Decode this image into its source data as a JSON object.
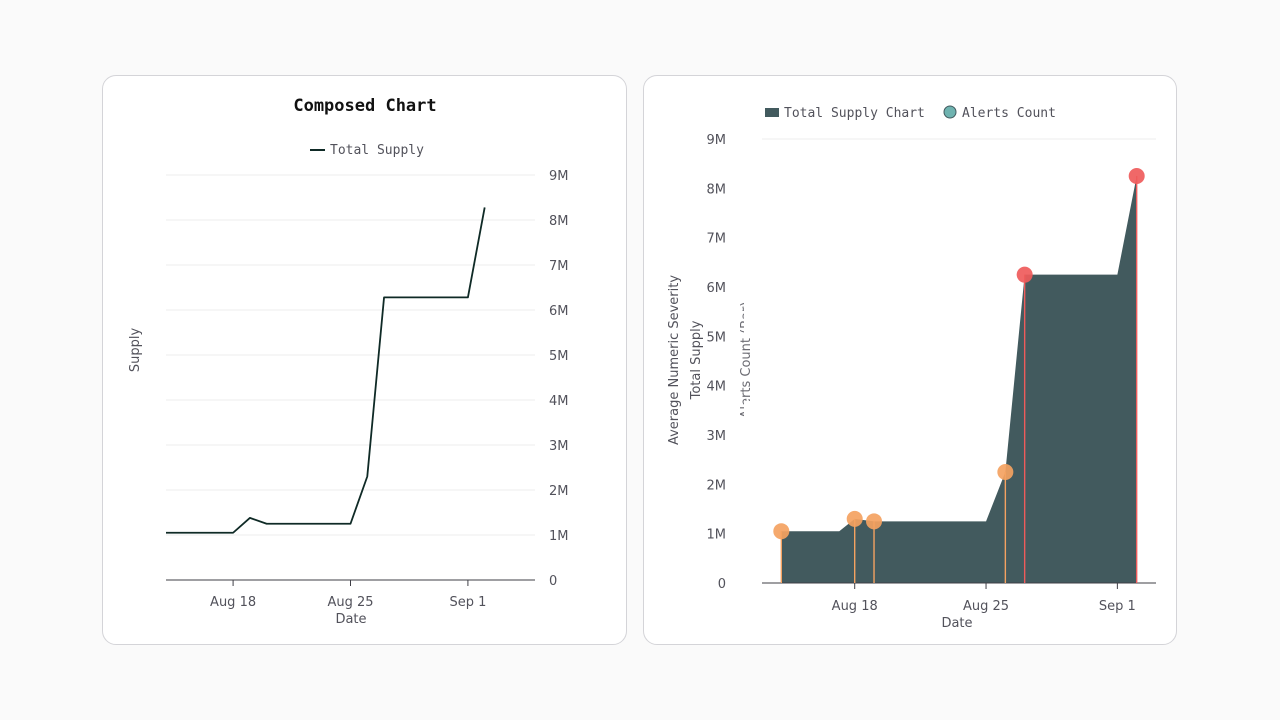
{
  "colors": {
    "line": "#0f2a26",
    "area": "#425a5e",
    "grid": "#ececec",
    "axis": "#3f3f46",
    "tick_text": "#52525b",
    "stem": "#e8956a",
    "dot_orange": "#f4a261",
    "dot_red": "#ef5b5b",
    "legend_dot": "#6fb3b0"
  },
  "chart_data": [
    {
      "type": "line",
      "title": "Composed Chart",
      "legend": [
        "Total Supply"
      ],
      "legend_position": "top-center",
      "xlabel": "Date",
      "ylabel": "Supply",
      "y_axis_side": "right",
      "ylim": [
        0,
        9000000
      ],
      "yticks": [
        0,
        1000000,
        2000000,
        3000000,
        4000000,
        5000000,
        6000000,
        7000000,
        8000000,
        9000000
      ],
      "ytick_labels": [
        "0",
        "1M",
        "2M",
        "3M",
        "4M",
        "5M",
        "6M",
        "7M",
        "8M",
        "9M"
      ],
      "xlim": [
        0,
        22
      ],
      "xticks": [
        4,
        11,
        18
      ],
      "xtick_labels": [
        "Aug 18",
        "Aug 25",
        "Sep 1"
      ],
      "grid": true,
      "series": [
        {
          "name": "Total Supply",
          "x": [
            0,
            3,
            4,
            5,
            6,
            10,
            11,
            12,
            13,
            17,
            18,
            19
          ],
          "values": [
            1050000,
            1050000,
            1050000,
            1380000,
            1250000,
            1250000,
            1250000,
            2300000,
            6280000,
            6280000,
            6280000,
            8280000
          ]
        }
      ]
    },
    {
      "type": "area",
      "legend": [
        "Total Supply Chart",
        "Alerts Count"
      ],
      "legend_position": "top-left",
      "xlabel": "Date",
      "ylabels": [
        "Average Numeric Severity",
        "Total Supply",
        "Alerts Count (Bar)"
      ],
      "ylim": [
        0,
        9000000
      ],
      "yticks": [
        0,
        1000000,
        2000000,
        3000000,
        4000000,
        5000000,
        6000000,
        7000000,
        8000000,
        9000000
      ],
      "ytick_labels": [
        "0",
        "1M",
        "2M",
        "3M",
        "4M",
        "5M",
        "6M",
        "7M",
        "8M",
        "9M"
      ],
      "xlim": [
        0,
        20.4
      ],
      "xticks": [
        4.8,
        11.6,
        18.4
      ],
      "xtick_labels": [
        "Aug 18",
        "Aug 25",
        "Sep 1"
      ],
      "grid": false,
      "series": [
        {
          "name": "Total Supply Chart",
          "x": [
            1.0,
            4.0,
            4.8,
            5.8,
            11.6,
            12.6,
            13.6,
            18.4,
            19.4
          ],
          "values": [
            1050000,
            1050000,
            1300000,
            1250000,
            1250000,
            2250000,
            6250000,
            6250000,
            8250000
          ]
        },
        {
          "name": "Alerts Count",
          "points": [
            {
              "x": 1.0,
              "value": 1050000,
              "level": "medium"
            },
            {
              "x": 4.8,
              "value": 1300000,
              "level": "medium"
            },
            {
              "x": 5.8,
              "value": 1250000,
              "level": "medium"
            },
            {
              "x": 12.6,
              "value": 2250000,
              "level": "medium"
            },
            {
              "x": 13.6,
              "value": 6250000,
              "level": "high"
            },
            {
              "x": 19.4,
              "value": 8250000,
              "level": "high"
            }
          ]
        }
      ]
    }
  ]
}
